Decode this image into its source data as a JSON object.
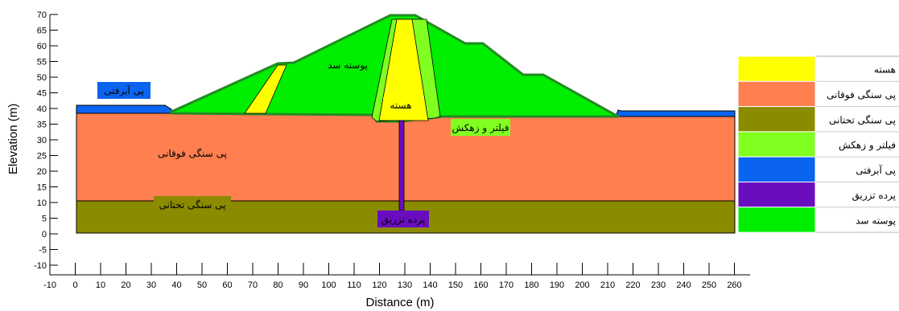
{
  "diagram": {
    "xlabel": "Distance (m)",
    "ylabel": "Elevation (m)",
    "x_ticks": [
      "-10",
      "0",
      "10",
      "20",
      "30",
      "40",
      "50",
      "60",
      "70",
      "80",
      "90",
      "100",
      "110",
      "120",
      "130",
      "140",
      "150",
      "160",
      "170",
      "180",
      "190",
      "200",
      "210",
      "220",
      "230",
      "240",
      "250",
      "260"
    ],
    "y_ticks": [
      "70",
      "65",
      "60",
      "55",
      "50",
      "45",
      "40",
      "35",
      "30",
      "25",
      "20",
      "15",
      "10",
      "5",
      "0",
      "-5",
      "-10"
    ],
    "labels": {
      "shell": "پوسته سد",
      "core": "هسته",
      "filter": "فیلتر و زهکش",
      "alluvium": "پی آبرفتی",
      "upper_rock": "پی سنگی فوقانی",
      "lower_rock": "پی سنگی تحتانی",
      "grout": "پرده تزریق"
    },
    "legend": [
      {
        "label": "هسته",
        "color": "#FFFF00"
      },
      {
        "label": "پی سنگی فوقانی",
        "color": "#FF7F50"
      },
      {
        "label": "پی سنگی تحتانی",
        "color": "#8B8B00"
      },
      {
        "label": "فیلتر و زهکش",
        "color": "#80FF20"
      },
      {
        "label": "پی آبرفتی",
        "color": "#0A64F0"
      },
      {
        "label": "پرده تزریق",
        "color": "#6A0DBF"
      },
      {
        "label": "پوسته سد",
        "color": "#00EE00"
      }
    ],
    "colors": {
      "outline": "#000000",
      "dam_outline": "#228B22"
    }
  }
}
